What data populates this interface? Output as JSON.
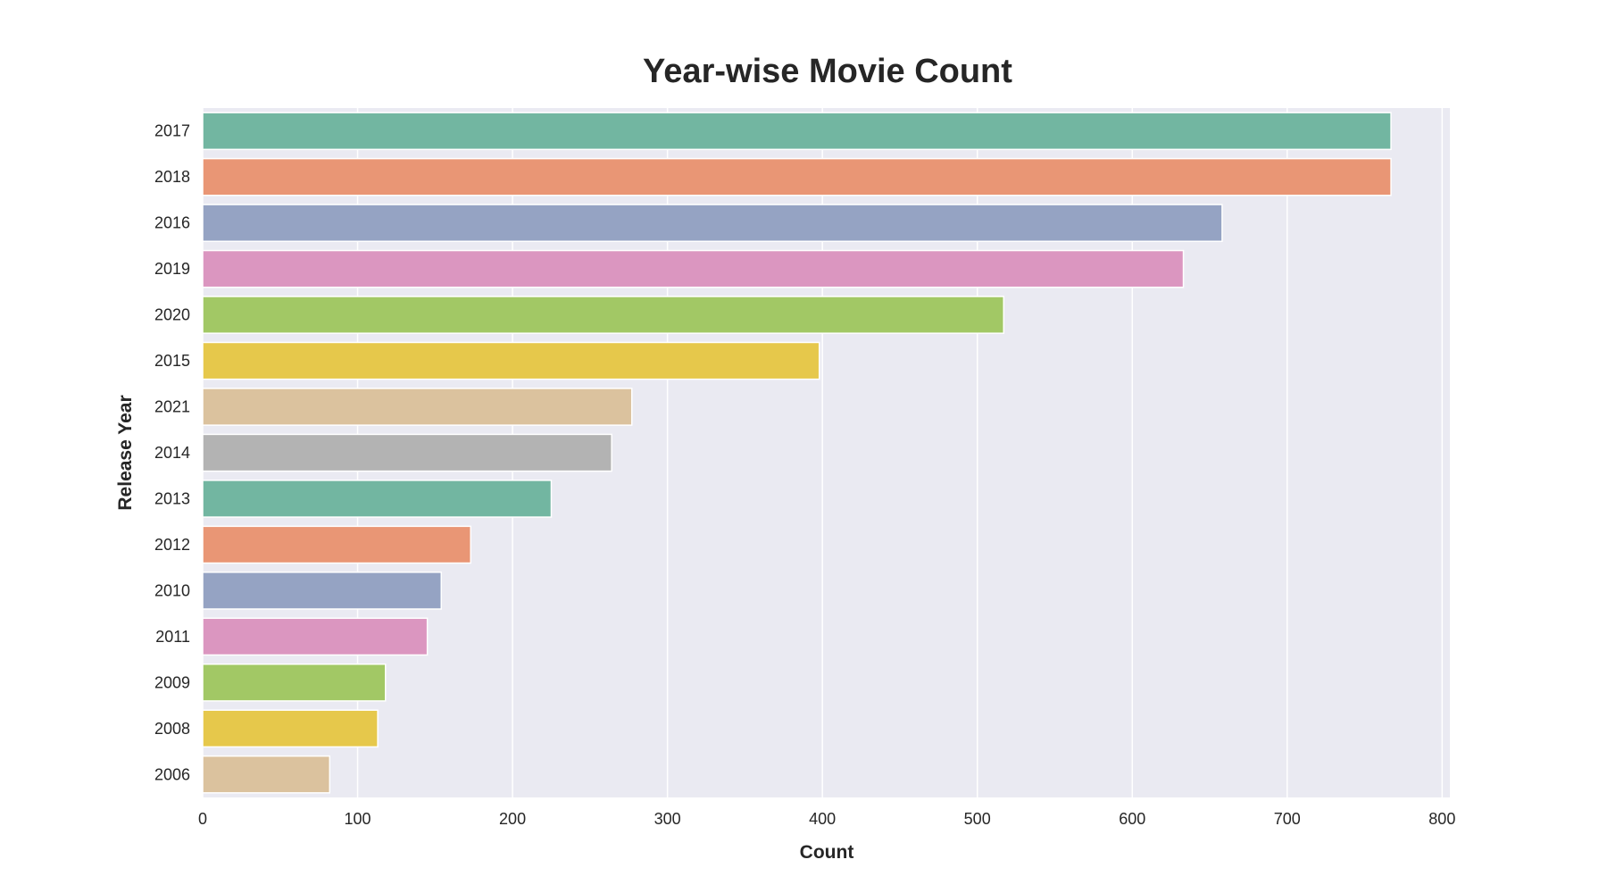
{
  "chart_data": {
    "type": "bar",
    "orientation": "horizontal",
    "title": "Year-wise Movie Count",
    "xlabel": "Count",
    "ylabel": "Release Year",
    "categories": [
      "2017",
      "2018",
      "2016",
      "2019",
      "2020",
      "2015",
      "2021",
      "2014",
      "2013",
      "2012",
      "2010",
      "2011",
      "2009",
      "2008",
      "2006"
    ],
    "values": [
      767,
      767,
      658,
      633,
      517,
      398,
      277,
      264,
      225,
      173,
      154,
      145,
      118,
      113,
      82
    ],
    "colors": [
      "#72b6a1",
      "#e99675",
      "#95a3c3",
      "#db96c0",
      "#a2c865",
      "#e6c84b",
      "#dbc29e",
      "#b3b3b3",
      "#72b6a1",
      "#e99675",
      "#95a3c3",
      "#db96c0",
      "#a2c865",
      "#e6c84b",
      "#dbc29e"
    ],
    "xlim": [
      0,
      805
    ],
    "xticks": [
      0,
      100,
      200,
      300,
      400,
      500,
      600,
      700,
      800
    ],
    "grid": true,
    "plot_background": "#eaeaf2",
    "grid_color": "#ffffff"
  }
}
